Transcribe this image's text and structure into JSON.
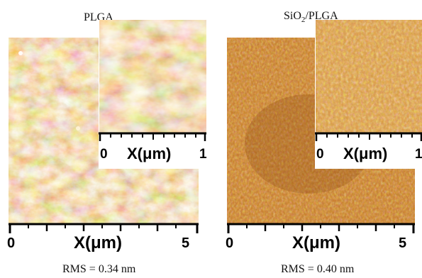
{
  "panels": [
    {
      "title": "PLGA",
      "main_axis": {
        "label": "X(μm)",
        "tick_start": "0",
        "tick_end": "5"
      },
      "inset_axis": {
        "label": "X(μm)",
        "tick_start": "0",
        "tick_end": "1"
      },
      "rms": "RMS = 0.34 nm"
    },
    {
      "title_main": "SiO",
      "title_sub": "2",
      "title_rest": "/PLGA",
      "main_axis": {
        "label": "X(μm)",
        "tick_start": "0",
        "tick_end": "5"
      },
      "inset_axis": {
        "label": "X(μm)",
        "tick_start": "0",
        "tick_end": "1"
      },
      "rms": "RMS = 0.40 nm"
    }
  ],
  "colors": {
    "afm_dark": "#6a2f06",
    "afm_mid": "#c4741f",
    "afm_light": "#f4d49a"
  }
}
